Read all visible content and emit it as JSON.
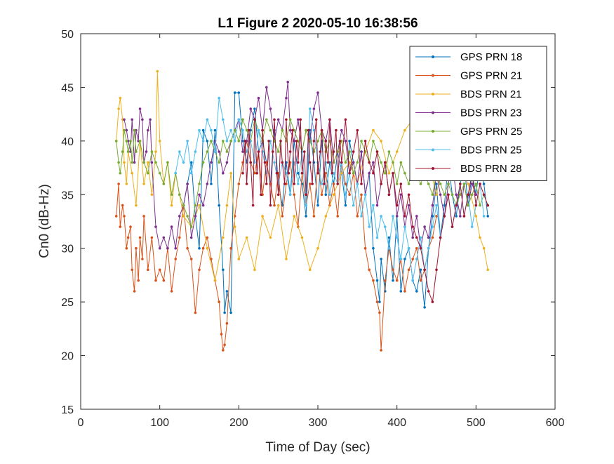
{
  "chart_data": {
    "type": "line",
    "title": "L1 Figure 2 2020-05-10 16:38:56",
    "xlabel": "Time of Day (sec)",
    "ylabel": "Cn0 (dB-Hz)",
    "xlim": [
      0,
      600
    ],
    "ylim": [
      15,
      50
    ],
    "xticks": [
      0,
      100,
      200,
      300,
      400,
      500,
      600
    ],
    "yticks": [
      15,
      20,
      25,
      30,
      35,
      40,
      45,
      50
    ],
    "grid": false,
    "legend_position": "top-right",
    "series": [
      {
        "name": "GPS PRN 18",
        "color": "#0072BD",
        "x": [
          130,
          135,
          140,
          145,
          150,
          155,
          160,
          165,
          170,
          175,
          180,
          182,
          185,
          190,
          195,
          200,
          205,
          210,
          215,
          220,
          225,
          230,
          235,
          240,
          245,
          250,
          255,
          260,
          265,
          270,
          275,
          280,
          285,
          290,
          295,
          300,
          305,
          310,
          315,
          320,
          325,
          330,
          335,
          340,
          345,
          350,
          355,
          360,
          365,
          370,
          375,
          378,
          380,
          385,
          390,
          395,
          400,
          405,
          410,
          415,
          420,
          425,
          430,
          435,
          440,
          445,
          450,
          455,
          460,
          465,
          470,
          475,
          480,
          485,
          490,
          495,
          500,
          505,
          510,
          515
        ],
        "y": [
          34,
          36,
          38,
          33,
          30,
          41,
          40,
          36,
          41,
          34,
          28,
          24,
          26,
          24,
          44.5,
          44.5,
          40,
          38,
          41,
          43,
          39,
          40,
          38,
          36,
          41,
          36,
          34,
          38,
          35,
          40,
          37,
          36,
          33,
          41,
          38,
          34,
          40,
          35,
          38,
          36,
          39,
          37,
          34,
          40,
          38,
          36,
          39,
          35,
          37,
          30,
          27,
          25,
          29,
          26,
          31,
          27,
          33,
          26,
          29,
          30,
          27,
          26,
          28,
          24.5,
          30,
          33,
          36,
          31,
          34,
          38,
          35,
          33,
          36,
          38,
          34,
          37,
          35,
          38,
          36,
          33
        ]
      },
      {
        "name": "GPS PRN 21",
        "color": "#D95319",
        "x": [
          45,
          48,
          50,
          53,
          55,
          58,
          60,
          63,
          65,
          68,
          70,
          73,
          75,
          78,
          80,
          85,
          90,
          95,
          100,
          105,
          110,
          115,
          120,
          125,
          130,
          135,
          140,
          145,
          150,
          155,
          160,
          165,
          170,
          175,
          178,
          180,
          182,
          185,
          190,
          195,
          200,
          205,
          210,
          215,
          220,
          225,
          230,
          235,
          240,
          245,
          250,
          255,
          260,
          265,
          270,
          275,
          280,
          285,
          290,
          295,
          300,
          305,
          310,
          315,
          320,
          325,
          330,
          335,
          340,
          345,
          350,
          355,
          360,
          365,
          370,
          375,
          378,
          380,
          385,
          390,
          395,
          400,
          405,
          410,
          415,
          420,
          425,
          430,
          435,
          440,
          445,
          450
        ],
        "y": [
          33,
          36,
          32,
          34,
          33,
          30,
          31,
          32,
          28,
          26,
          30,
          27,
          31,
          29,
          33,
          28,
          31,
          27,
          28,
          27,
          30,
          26,
          29,
          31,
          34,
          30,
          29,
          24,
          28,
          30,
          31,
          29,
          27,
          25,
          22,
          20.5,
          21,
          23,
          30,
          33,
          36,
          38,
          40,
          38,
          37,
          39,
          35,
          38,
          36,
          34,
          37,
          33,
          36,
          38,
          35,
          32,
          37,
          34,
          36,
          33,
          38,
          35,
          37,
          34,
          36,
          33,
          38,
          36,
          35,
          37,
          33,
          35,
          30,
          28,
          27,
          25,
          24,
          20.5,
          27,
          30,
          28,
          27,
          29,
          26,
          28,
          29,
          30,
          27,
          28,
          30,
          31,
          33
        ]
      },
      {
        "name": "BDS PRN 21",
        "color": "#EDB120",
        "x": [
          45,
          48,
          50,
          53,
          55,
          58,
          60,
          65,
          70,
          75,
          80,
          85,
          90,
          95,
          97,
          100,
          105,
          110,
          115,
          120,
          125,
          130,
          140,
          150,
          160,
          170,
          180,
          185,
          190,
          195,
          200,
          210,
          220,
          230,
          240,
          250,
          260,
          270,
          280,
          290,
          300,
          310,
          320,
          330,
          340,
          350,
          360,
          370,
          380,
          390,
          400,
          410,
          420,
          430,
          440,
          450,
          460,
          470,
          480,
          490,
          500,
          505,
          510,
          515
        ],
        "y": [
          40,
          43,
          44,
          42,
          38,
          36,
          39,
          37,
          34,
          40,
          36,
          38,
          35,
          39,
          46.5,
          40,
          36,
          38,
          34,
          37,
          35,
          33,
          32,
          34,
          30,
          27,
          31,
          34,
          37,
          32,
          29,
          31,
          28,
          33,
          31,
          34,
          29,
          33,
          31,
          28,
          30,
          33,
          35,
          37,
          38,
          36,
          39,
          41,
          40,
          37,
          39,
          41,
          42,
          40,
          38,
          35,
          39,
          40,
          38,
          36,
          33,
          31,
          30,
          28
        ]
      },
      {
        "name": "BDS PRN 23",
        "color": "#7E2F8E",
        "x": [
          55,
          58,
          60,
          63,
          65,
          68,
          70,
          73,
          75,
          78,
          80,
          83,
          85,
          88,
          90,
          95,
          100,
          105,
          110,
          115,
          120,
          125,
          130,
          135,
          140,
          145,
          150,
          155,
          160,
          165,
          170,
          175,
          180,
          185,
          190,
          195,
          200,
          205,
          210,
          215,
          220,
          225,
          230,
          235,
          240,
          245,
          250,
          255,
          260,
          262,
          265,
          270,
          275,
          280,
          285,
          290,
          295,
          300,
          305,
          310,
          315,
          320,
          325,
          330,
          335,
          340,
          345,
          350,
          355,
          360,
          365,
          370,
          375,
          380,
          385,
          390,
          395,
          400,
          405,
          410,
          415,
          420,
          425,
          430,
          435,
          440,
          445,
          450,
          455,
          460,
          465,
          470,
          475,
          480,
          485,
          490,
          495,
          500
        ],
        "y": [
          42,
          41,
          40,
          39,
          42,
          38,
          41,
          40,
          43,
          42,
          38,
          39,
          41,
          42,
          38,
          32,
          30,
          31,
          30,
          32,
          30,
          33,
          34,
          36,
          31,
          33,
          35,
          34,
          36,
          38,
          40,
          39,
          37,
          38,
          40,
          41,
          42,
          39,
          40,
          43,
          42,
          44,
          41,
          45,
          43,
          40,
          42,
          41,
          44,
          45.5,
          41,
          40,
          42,
          39,
          41,
          40,
          43,
          44.5,
          41,
          40,
          42,
          38,
          39,
          41,
          40,
          37,
          38,
          36,
          39,
          35,
          37,
          38,
          34,
          36,
          38,
          35,
          37,
          33,
          35,
          32,
          34,
          31,
          33,
          30,
          32,
          31,
          34,
          37,
          35,
          33,
          36,
          38,
          35,
          33,
          36,
          34,
          36,
          35
        ]
      },
      {
        "name": "GPS PRN 25",
        "color": "#77AC30",
        "x": [
          45,
          48,
          50,
          53,
          55,
          58,
          60,
          63,
          65,
          68,
          70,
          75,
          80,
          85,
          90,
          95,
          100,
          105,
          110,
          115,
          120,
          125,
          130,
          135,
          140,
          145,
          150,
          155,
          160,
          165,
          170,
          175,
          180,
          185,
          190,
          195,
          200,
          205,
          210,
          215,
          220,
          225,
          230,
          235,
          240,
          245,
          250,
          255,
          260,
          265,
          270,
          275,
          280,
          285,
          290,
          295,
          300,
          305,
          310,
          315,
          320,
          325,
          330,
          335,
          340,
          345,
          350,
          355,
          360,
          365,
          370,
          375,
          380,
          385,
          390,
          395,
          400,
          405,
          410,
          415,
          420,
          425,
          430,
          435,
          440,
          445,
          450,
          455,
          460,
          465,
          470,
          475,
          480,
          485,
          490,
          495,
          500,
          505,
          510,
          515
        ],
        "y": [
          40,
          38,
          37,
          39,
          41,
          40,
          39,
          40,
          38,
          41,
          39,
          40,
          38,
          37,
          39,
          38,
          37,
          36,
          38,
          35,
          37,
          35,
          34,
          33,
          32,
          34,
          36,
          38,
          39,
          40,
          39,
          38,
          40,
          39,
          40,
          41,
          40,
          42,
          41,
          40,
          42,
          41,
          40,
          42,
          41,
          40,
          39,
          41,
          40,
          42,
          41,
          40,
          39,
          41,
          40,
          39,
          40,
          41,
          39,
          40,
          38,
          39,
          40,
          38,
          39,
          37,
          38,
          40,
          39,
          38,
          40,
          39,
          38,
          37,
          39,
          38,
          36,
          38,
          37,
          36,
          38,
          37,
          36,
          37,
          36,
          35,
          37,
          36,
          35,
          36,
          35,
          34,
          35,
          36,
          34,
          35,
          36,
          34,
          35,
          34
        ]
      },
      {
        "name": "BDS PRN 25",
        "color": "#4DBEEE",
        "x": [
          120,
          125,
          130,
          135,
          140,
          145,
          150,
          155,
          160,
          165,
          170,
          175,
          180,
          185,
          190,
          195,
          200,
          205,
          210,
          215,
          220,
          225,
          230,
          235,
          240,
          245,
          250,
          255,
          260,
          265,
          270,
          275,
          280,
          285,
          290,
          295,
          300,
          305,
          310,
          315,
          320,
          325,
          330,
          335,
          340,
          345,
          350,
          355,
          360,
          365,
          370,
          375,
          380,
          385,
          390,
          395,
          400,
          405,
          410,
          415,
          420,
          425,
          430,
          435,
          440,
          445,
          450,
          455,
          460,
          465,
          470,
          475,
          480,
          485,
          490,
          495,
          500,
          505,
          510
        ],
        "y": [
          37,
          39,
          38,
          40,
          37,
          39,
          41,
          40,
          42,
          41,
          39,
          44,
          42,
          40,
          41,
          40,
          42,
          41,
          39,
          40,
          38,
          41,
          39,
          37,
          40,
          38,
          36,
          38,
          37,
          35,
          38,
          36,
          39,
          34,
          43,
          41,
          38,
          36,
          38,
          35,
          37,
          36,
          38,
          35,
          37,
          34,
          36,
          33,
          35,
          32,
          34,
          31,
          33,
          32,
          30,
          33,
          31,
          29,
          32,
          30,
          27,
          29,
          31,
          28,
          30,
          32,
          34,
          31,
          33,
          35,
          32,
          34,
          36,
          33,
          35,
          32,
          34,
          36,
          33
        ]
      },
      {
        "name": "BDS PRN 28",
        "color": "#A2142F",
        "x": [
          205,
          208,
          210,
          213,
          215,
          218,
          220,
          223,
          225,
          228,
          230,
          233,
          235,
          238,
          240,
          243,
          245,
          248,
          250,
          253,
          255,
          258,
          260,
          263,
          265,
          268,
          270,
          273,
          275,
          278,
          280,
          283,
          285,
          288,
          290,
          293,
          295,
          298,
          300,
          303,
          305,
          308,
          310,
          313,
          315,
          318,
          320,
          323,
          325,
          328,
          330,
          335,
          340,
          345,
          350,
          355,
          360,
          365,
          370,
          375,
          380,
          385,
          390,
          395,
          400,
          405,
          410,
          415,
          420,
          425,
          430,
          435,
          440,
          445,
          450,
          455,
          460,
          465,
          470,
          475,
          480,
          485,
          490,
          495,
          500,
          505,
          510,
          515
        ],
        "y": [
          37,
          40,
          36,
          41,
          38,
          34,
          42,
          37,
          39,
          35,
          41,
          38,
          36,
          40,
          34,
          39,
          42,
          37,
          35,
          40,
          38,
          36,
          42,
          37,
          39,
          41,
          36,
          40,
          38,
          42,
          37,
          39,
          35,
          41,
          38,
          36,
          40,
          42,
          37,
          39,
          41,
          36,
          40,
          38,
          42,
          37,
          39,
          41,
          36,
          40,
          38,
          42,
          37,
          39,
          41,
          36,
          40,
          38,
          37,
          39,
          36,
          38,
          35,
          37,
          34,
          36,
          33,
          35,
          32,
          31,
          30,
          28,
          26,
          25,
          28,
          31,
          33,
          35,
          32,
          34,
          36,
          33,
          35,
          37,
          34,
          36,
          35,
          34
        ]
      }
    ]
  }
}
